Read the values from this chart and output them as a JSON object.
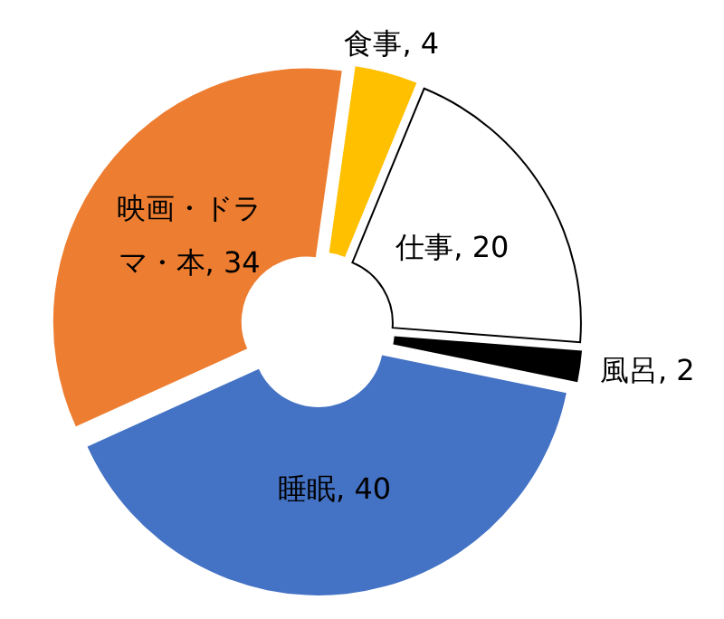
{
  "chart_data": {
    "type": "donut",
    "categories": [
      "食事",
      "仕事",
      "風呂",
      "睡眠",
      "映画・ドラマ・本"
    ],
    "values": [
      4,
      20,
      2,
      40,
      34
    ],
    "value_labels": [
      ", 4",
      ", 20",
      ", 2",
      ", 40",
      ", 34"
    ],
    "colors": [
      "#ffc000",
      "#ffffff",
      "#000000",
      "#4472c4",
      "#ed7d31"
    ]
  }
}
